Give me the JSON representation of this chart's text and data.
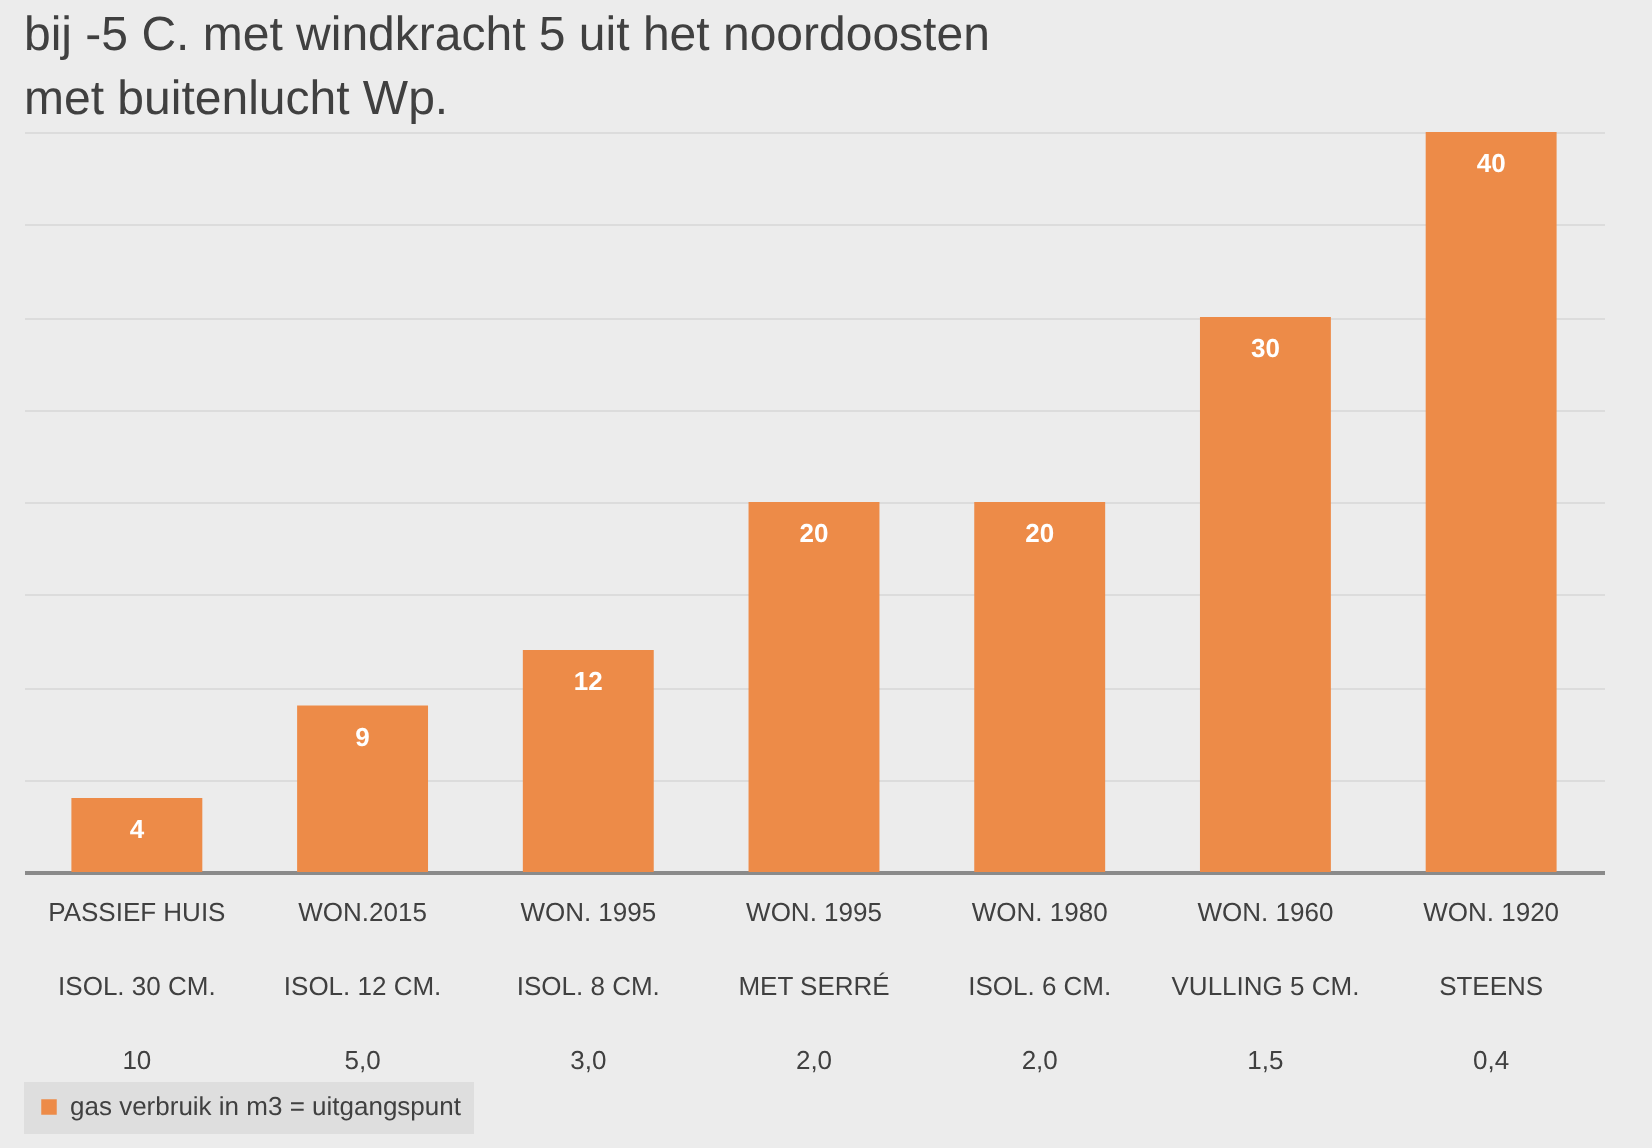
{
  "chart_data": {
    "type": "bar",
    "title": [
      "bij -5 C. met windkracht 5 uit het noordoosten",
      "met buitenlucht Wp."
    ],
    "categories": [
      "PASSIEF HUIS\nISOL. 30 CM.\n10",
      "WON.2015\nISOL. 12 CM.\n5,0",
      "WON. 1995\nISOL. 8 CM.\n3,0",
      "WON. 1995\nMET SERRÉ\n2,0",
      "WON. 1980\nISOL. 6 CM.\n2,0",
      "WON. 1960\nVULLING 5 CM.\n1,5",
      "WON. 1920\nSTEENS\n0,4"
    ],
    "series": [
      {
        "name": "gas verbruik in m3 = uitgangspunt",
        "color": "#ed8b48",
        "values": [
          4,
          9,
          12,
          20,
          20,
          30,
          40
        ]
      }
    ],
    "ylim": [
      0,
      40
    ],
    "yticks": [
      {
        "value": 0,
        "label": null
      },
      {
        "value": 5,
        "label": null
      },
      {
        "value": 10,
        "label": null
      },
      {
        "value": 15,
        "label": null
      },
      {
        "value": 20,
        "label": null
      },
      {
        "value": 25,
        "label": null
      },
      {
        "value": 30,
        "label": null
      },
      {
        "value": 35,
        "label": null
      },
      {
        "value": 40,
        "label": null
      }
    ],
    "grid": "y",
    "data_labels": true,
    "legend": "bottom",
    "tick_labels": "x"
  }
}
